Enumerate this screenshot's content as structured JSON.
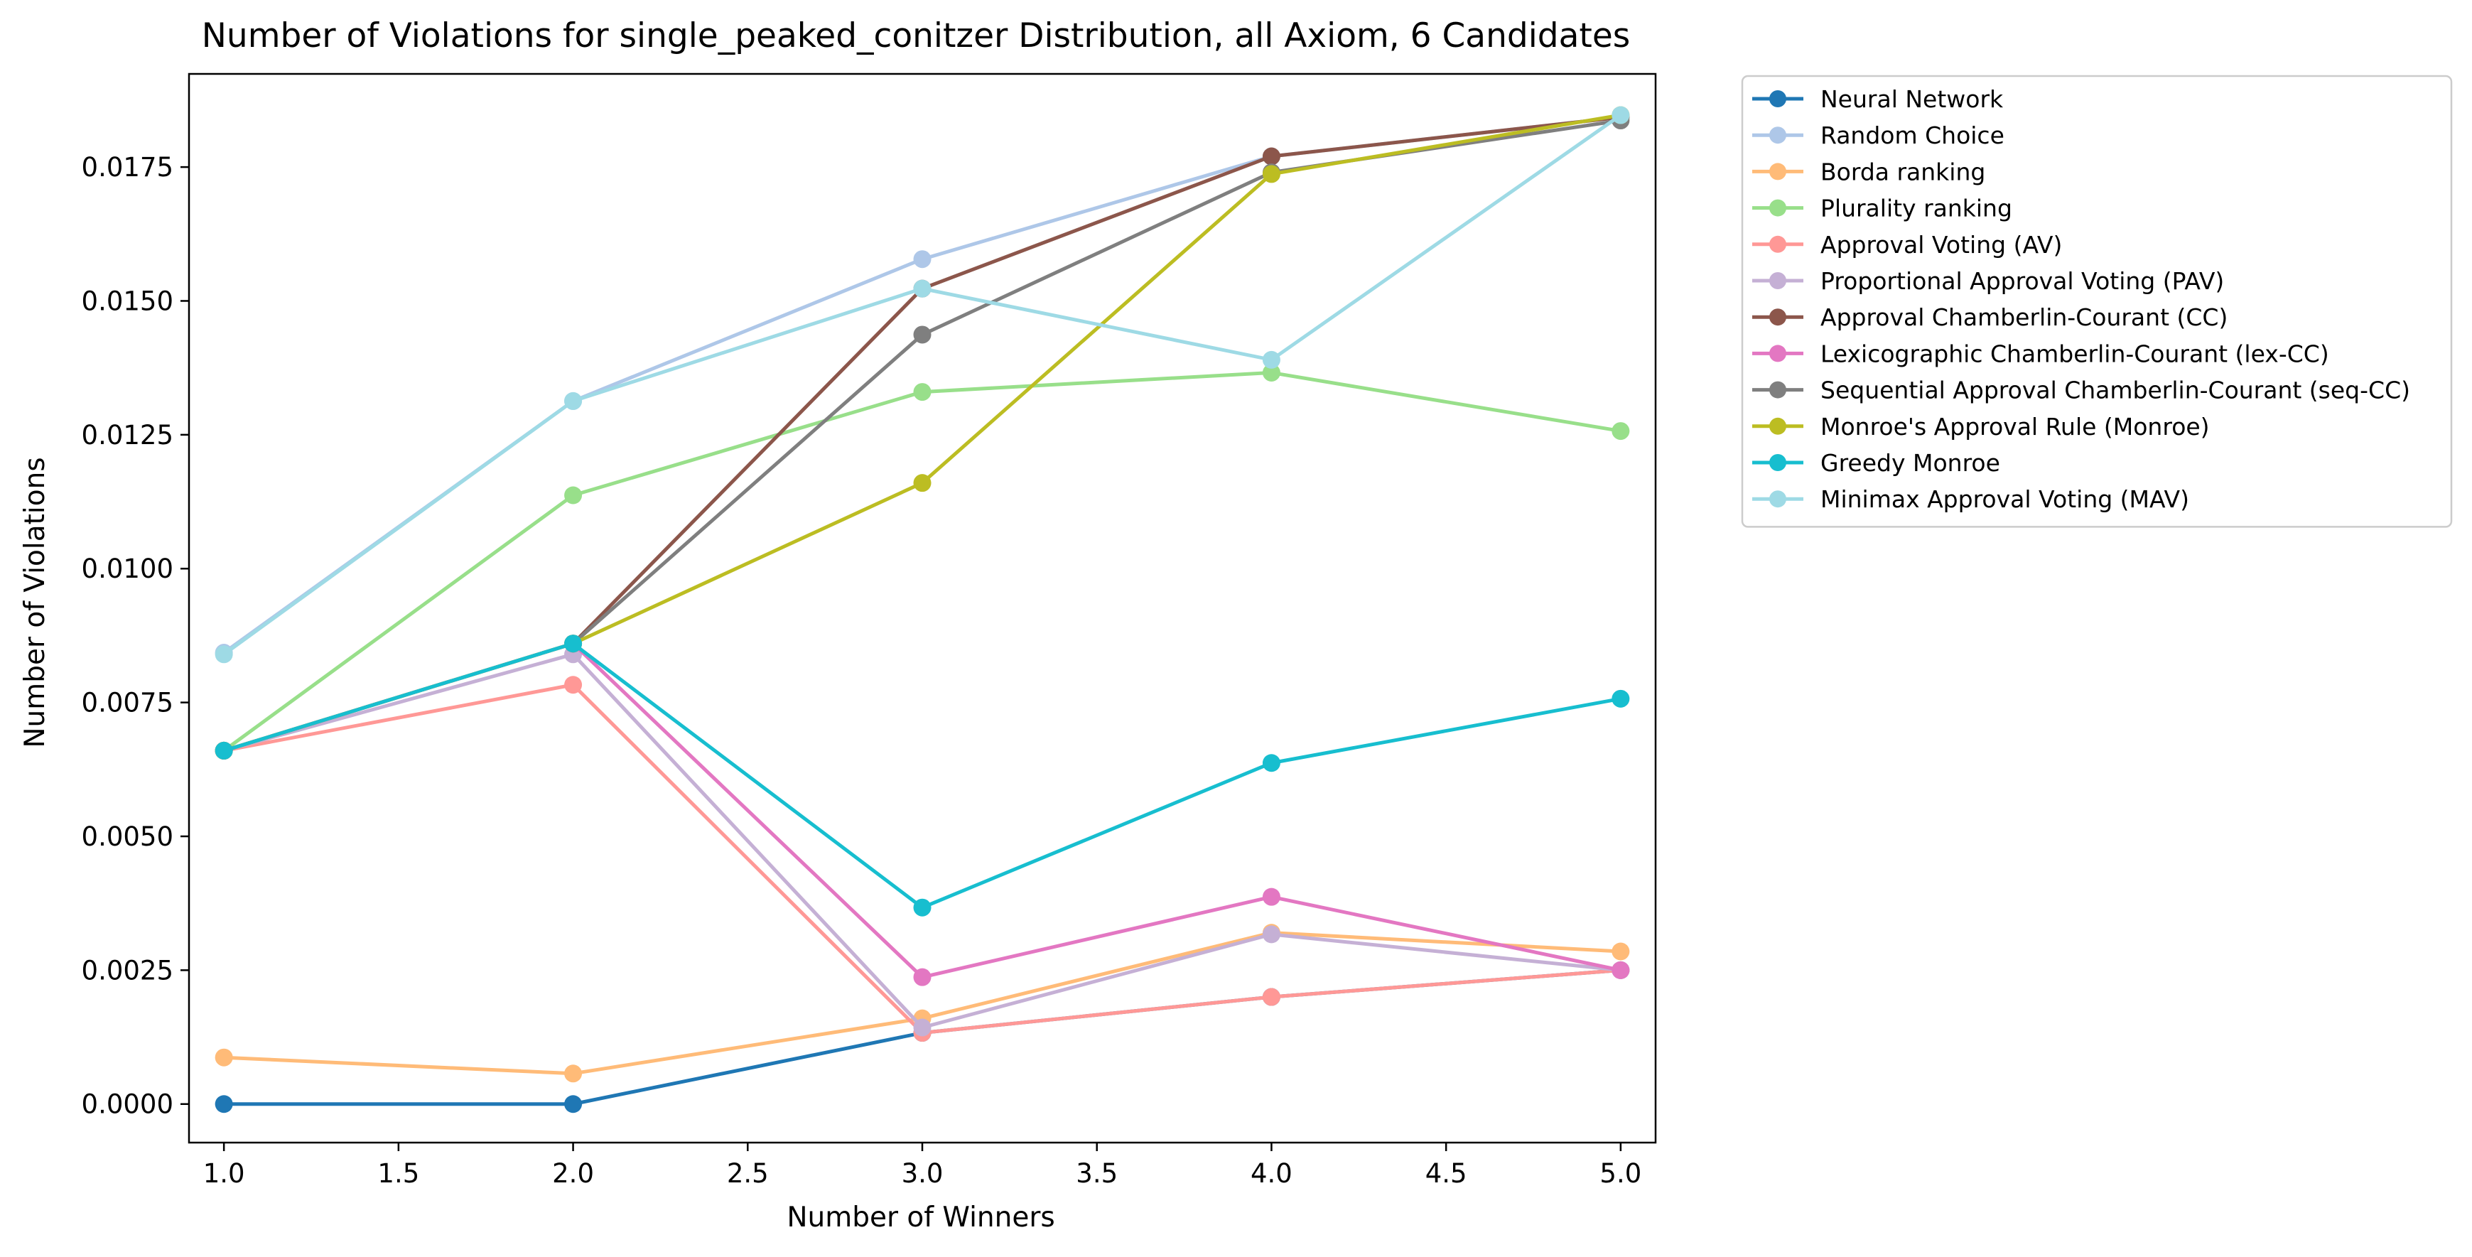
{
  "chart_data": {
    "type": "line",
    "title": "Number of Violations for single_peaked_conitzer Distribution, all Axiom, 6 Candidates",
    "xlabel": "Number of Winners",
    "ylabel": "Number of Violations",
    "xlim": [
      0.9,
      5.1
    ],
    "ylim": [
      -0.00072,
      0.01924
    ],
    "xticks": [
      1.0,
      1.5,
      2.0,
      2.5,
      3.0,
      3.5,
      4.0,
      4.5,
      5.0
    ],
    "xtick_labels": [
      "1.0",
      "1.5",
      "2.0",
      "2.5",
      "3.0",
      "3.5",
      "4.0",
      "4.5",
      "5.0"
    ],
    "yticks": [
      0.0,
      0.0025,
      0.005,
      0.0075,
      0.01,
      0.0125,
      0.015,
      0.0175
    ],
    "ytick_labels": [
      "0.0000",
      "0.0025",
      "0.0050",
      "0.0075",
      "0.0100",
      "0.0125",
      "0.0150",
      "0.0175"
    ],
    "grid": false,
    "legend_placement": "outside-top-right",
    "x": [
      1.0,
      2.0,
      3.0,
      4.0,
      5.0
    ],
    "series": [
      {
        "name": "Neural Network",
        "color": "#1f77b4",
        "values": [
          0.0,
          0.0,
          0.00133,
          0.002,
          0.0025
        ]
      },
      {
        "name": "Random Choice",
        "color": "#aec7e8",
        "values": [
          0.00843,
          0.01313,
          0.01578,
          0.0177,
          0.01843
        ]
      },
      {
        "name": "Borda ranking",
        "color": "#ffbb78",
        "values": [
          0.00087,
          0.00057,
          0.0016,
          0.0032,
          0.00285
        ]
      },
      {
        "name": "Plurality ranking",
        "color": "#98df8a",
        "values": [
          0.0066,
          0.01137,
          0.0133,
          0.01366,
          0.01257
        ]
      },
      {
        "name": "Approval Voting (AV)",
        "color": "#ff9896",
        "values": [
          0.0066,
          0.00783,
          0.00133,
          0.002,
          0.0025
        ]
      },
      {
        "name": "Proportional Approval Voting (PAV)",
        "color": "#c5b0d5",
        "values": [
          0.0066,
          0.0084,
          0.00143,
          0.00317,
          0.0025
        ]
      },
      {
        "name": "Approval Chamberlin-Courant (CC)",
        "color": "#8c564b",
        "values": [
          0.0066,
          0.0086,
          0.01523,
          0.0177,
          0.01843
        ]
      },
      {
        "name": "Lexicographic Chamberlin-Courant (lex-CC)",
        "color": "#e377c2",
        "values": [
          0.0066,
          0.0086,
          0.00237,
          0.00387,
          0.0025
        ]
      },
      {
        "name": "Sequential Approval Chamberlin-Courant (seq-CC)",
        "color": "#7f7f7f",
        "values": [
          0.0066,
          0.0086,
          0.01437,
          0.0174,
          0.01837
        ]
      },
      {
        "name": "Monroe's Approval Rule (Monroe)",
        "color": "#bcbd22",
        "values": [
          0.0066,
          0.0086,
          0.0116,
          0.01737,
          0.01847
        ]
      },
      {
        "name": "Greedy Monroe",
        "color": "#17becf",
        "values": [
          0.0066,
          0.0086,
          0.00367,
          0.00637,
          0.00757
        ]
      },
      {
        "name": "Minimax Approval Voting (MAV)",
        "color": "#9edae5",
        "values": [
          0.0084,
          0.01313,
          0.01523,
          0.0139,
          0.01847
        ]
      }
    ]
  }
}
